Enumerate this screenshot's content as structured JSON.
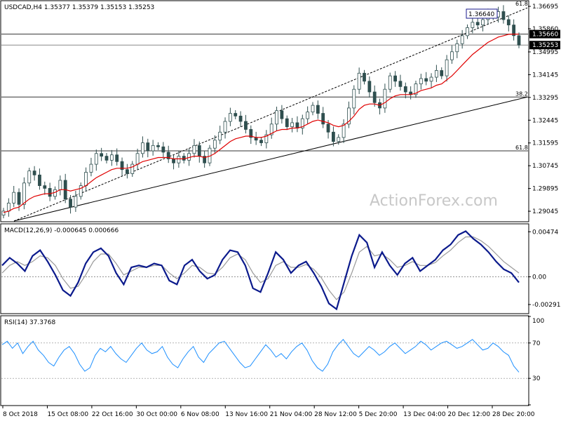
{
  "chart_data": {
    "type": "candlestick",
    "symbol_header": "USDCAD,H4  1.35377 1.35379 1.35153 1.35253",
    "watermark": "ActionForex.com",
    "price_axis": {
      "ticks": [
        "1.36695",
        "1.35860",
        "1.34995",
        "1.34145",
        "1.33295",
        "1.32445",
        "1.31595",
        "1.30745",
        "1.29895",
        "1.29045"
      ],
      "range": [
        1.2868,
        1.3688
      ]
    },
    "price_labels": {
      "current": "1.35253",
      "ma_value": "1.35660",
      "high_box": "1.36640"
    },
    "fib_labels": [
      {
        "label": "61.8",
        "level": 1.3688
      },
      {
        "label": "38.2",
        "level": 1.3331
      },
      {
        "label": "61.8",
        "level": 1.313
      }
    ],
    "horizontal_levels": [
      1.3566,
      1.3525,
      1.3331,
      1.313
    ],
    "trendlines": [
      {
        "style": "dashed",
        "from": [
          0,
          1.2868
        ],
        "to": [
          1,
          1.3664
        ]
      },
      {
        "style": "solid",
        "from": [
          0,
          1.2868
        ],
        "to": [
          1,
          1.3331
        ]
      }
    ],
    "close_series": [
      1.2905,
      1.2935,
      1.2975,
      1.293,
      1.301,
      1.3055,
      1.304,
      1.3,
      1.299,
      1.296,
      1.2985,
      1.302,
      1.295,
      1.292,
      1.296,
      1.3,
      1.305,
      1.308,
      1.312,
      1.311,
      1.3095,
      1.3115,
      1.309,
      1.306,
      1.3045,
      1.308,
      1.312,
      1.316,
      1.313,
      1.315,
      1.3145,
      1.3125,
      1.31,
      1.3085,
      1.311,
      1.3095,
      1.312,
      1.315,
      1.311,
      1.3085,
      1.314,
      1.317,
      1.32,
      1.324,
      1.327,
      1.326,
      1.324,
      1.321,
      1.318,
      1.317,
      1.316,
      1.319,
      1.323,
      1.328,
      1.325,
      1.322,
      1.3235,
      1.3215,
      1.325,
      1.3275,
      1.33,
      1.327,
      1.323,
      1.32,
      1.3165,
      1.318,
      1.323,
      1.329,
      1.336,
      1.342,
      1.339,
      1.335,
      1.331,
      1.329,
      1.336,
      1.341,
      1.339,
      1.337,
      1.335,
      1.334,
      1.338,
      1.34,
      1.339,
      1.3405,
      1.343,
      1.341,
      1.347,
      1.35,
      1.353,
      1.356,
      1.359,
      1.361,
      1.36,
      1.362,
      1.364,
      1.363,
      1.365,
      1.362,
      1.36,
      1.356,
      1.3525
    ],
    "ma_series": [
      1.29,
      1.2905,
      1.2915,
      1.292,
      1.2935,
      1.295,
      1.296,
      1.2965,
      1.297,
      1.297,
      1.2975,
      1.2985,
      1.2985,
      1.298,
      1.2985,
      1.299,
      1.3,
      1.3015,
      1.303,
      1.304,
      1.305,
      1.306,
      1.3065,
      1.3065,
      1.3065,
      1.307,
      1.308,
      1.309,
      1.3095,
      1.31,
      1.3105,
      1.3105,
      1.3105,
      1.31,
      1.31,
      1.31,
      1.3105,
      1.311,
      1.311,
      1.3105,
      1.311,
      1.312,
      1.3135,
      1.315,
      1.3165,
      1.3175,
      1.318,
      1.3185,
      1.3185,
      1.318,
      1.318,
      1.3185,
      1.3195,
      1.3205,
      1.321,
      1.321,
      1.3215,
      1.3215,
      1.322,
      1.323,
      1.324,
      1.3245,
      1.324,
      1.3235,
      1.3225,
      1.322,
      1.3225,
      1.324,
      1.326,
      1.3285,
      1.33,
      1.3305,
      1.3305,
      1.33,
      1.331,
      1.3325,
      1.3335,
      1.334,
      1.334,
      1.334,
      1.3345,
      1.3355,
      1.336,
      1.3365,
      1.3375,
      1.338,
      1.3395,
      1.341,
      1.343,
      1.345,
      1.347,
      1.349,
      1.3505,
      1.352,
      1.3535,
      1.3545,
      1.3555,
      1.356,
      1.3565,
      1.3566,
      1.3566
    ],
    "macd": {
      "label": "MACD(12,26,9) -0.000645 0.000666",
      "ticks": [
        "0.00474",
        "0.00",
        "-0.002915"
      ],
      "tick_values": [
        0.00474,
        0.0,
        -0.002915
      ],
      "range": [
        -0.0038,
        0.0055
      ],
      "macd_series": [
        0.0012,
        0.002,
        0.0014,
        0.0006,
        0.0022,
        0.0028,
        0.0016,
        0.0002,
        -0.0014,
        -0.002,
        -0.0006,
        0.0014,
        0.0026,
        0.003,
        0.0022,
        0.0004,
        -0.0008,
        0.001,
        0.0012,
        0.001,
        0.0014,
        0.0012,
        -0.0004,
        -0.0008,
        0.0012,
        0.0018,
        0.0006,
        -0.0002,
        0.0002,
        0.0018,
        0.0028,
        0.0026,
        0.0012,
        -0.0012,
        -0.0016,
        0.0004,
        0.0026,
        0.0018,
        0.0004,
        0.0012,
        0.0016,
        0.0004,
        -0.001,
        -0.0028,
        -0.0034,
        -0.0006,
        0.0022,
        0.0044,
        0.0036,
        0.001,
        0.0026,
        0.0012,
        0.0002,
        0.0014,
        0.002,
        0.0006,
        0.0012,
        0.0018,
        0.0028,
        0.0034,
        0.0044,
        0.0048,
        0.004,
        0.0034,
        0.0026,
        0.0016,
        0.0008,
        0.0004,
        -0.0006
      ],
      "signal_series": [
        0.0004,
        0.0012,
        0.0016,
        0.0012,
        0.0016,
        0.0022,
        0.002,
        0.0012,
        -0.0002,
        -0.0012,
        -0.001,
        0.0002,
        0.0016,
        0.0024,
        0.0024,
        0.0014,
        0.0002,
        0.0006,
        0.001,
        0.001,
        0.0012,
        0.0012,
        0.0004,
        -0.0002,
        0.0004,
        0.0012,
        0.001,
        0.0004,
        0.0003,
        0.001,
        0.002,
        0.0024,
        0.0018,
        0.0004,
        -0.0006,
        -0.0002,
        0.0012,
        0.0016,
        0.001,
        0.001,
        0.0013,
        0.0008,
        -0.0001,
        -0.0014,
        -0.0024,
        -0.0016,
        0.0004,
        0.0026,
        0.0032,
        0.0022,
        0.0024,
        0.0018,
        0.001,
        0.0012,
        0.0016,
        0.0012,
        0.0012,
        0.0015,
        0.0022,
        0.0028,
        0.0036,
        0.0042,
        0.0042,
        0.0038,
        0.0032,
        0.0024,
        0.0016,
        0.001,
        0.0004
      ]
    },
    "rsi": {
      "label": "RSI(14) 37.3768",
      "ticks": [
        "100",
        "70",
        "30",
        "0"
      ],
      "tick_values": [
        100,
        70,
        30,
        0
      ],
      "range": [
        0,
        100
      ],
      "series": [
        68,
        72,
        64,
        70,
        58,
        66,
        72,
        62,
        56,
        48,
        44,
        54,
        62,
        66,
        58,
        46,
        38,
        42,
        56,
        64,
        60,
        66,
        58,
        52,
        48,
        56,
        64,
        70,
        62,
        58,
        60,
        66,
        54,
        46,
        42,
        52,
        60,
        66,
        54,
        48,
        58,
        64,
        70,
        72,
        64,
        56,
        48,
        42,
        44,
        52,
        60,
        68,
        62,
        54,
        58,
        52,
        60,
        66,
        70,
        62,
        50,
        42,
        38,
        46,
        60,
        68,
        74,
        66,
        58,
        54,
        60,
        66,
        62,
        56,
        60,
        66,
        70,
        64,
        58,
        62,
        66,
        72,
        68,
        62,
        66,
        70,
        72,
        68,
        64,
        66,
        70,
        74,
        68,
        62,
        64,
        70,
        66,
        60,
        56,
        44,
        37
      ]
    },
    "x_ticks": [
      "8 Oct 2018",
      "15 Oct 08:00",
      "22 Oct 16:00",
      "30 Oct 00:00",
      "6 Nov 08:00",
      "13 Nov 16:00",
      "21 Nov 04:00",
      "28 Nov 12:00",
      "5 Dec 20:00",
      "13 Dec 04:00",
      "20 Dec 12:00",
      "28 Dec 20:00"
    ],
    "colors": {
      "candle": "#2f4f4f",
      "ma": "#e00000",
      "macd": "#0b1a8c",
      "signal": "#9a9a9a",
      "rsi": "#1e90ff",
      "watermark": "#c8c8c8",
      "label_box": "#000000"
    }
  }
}
